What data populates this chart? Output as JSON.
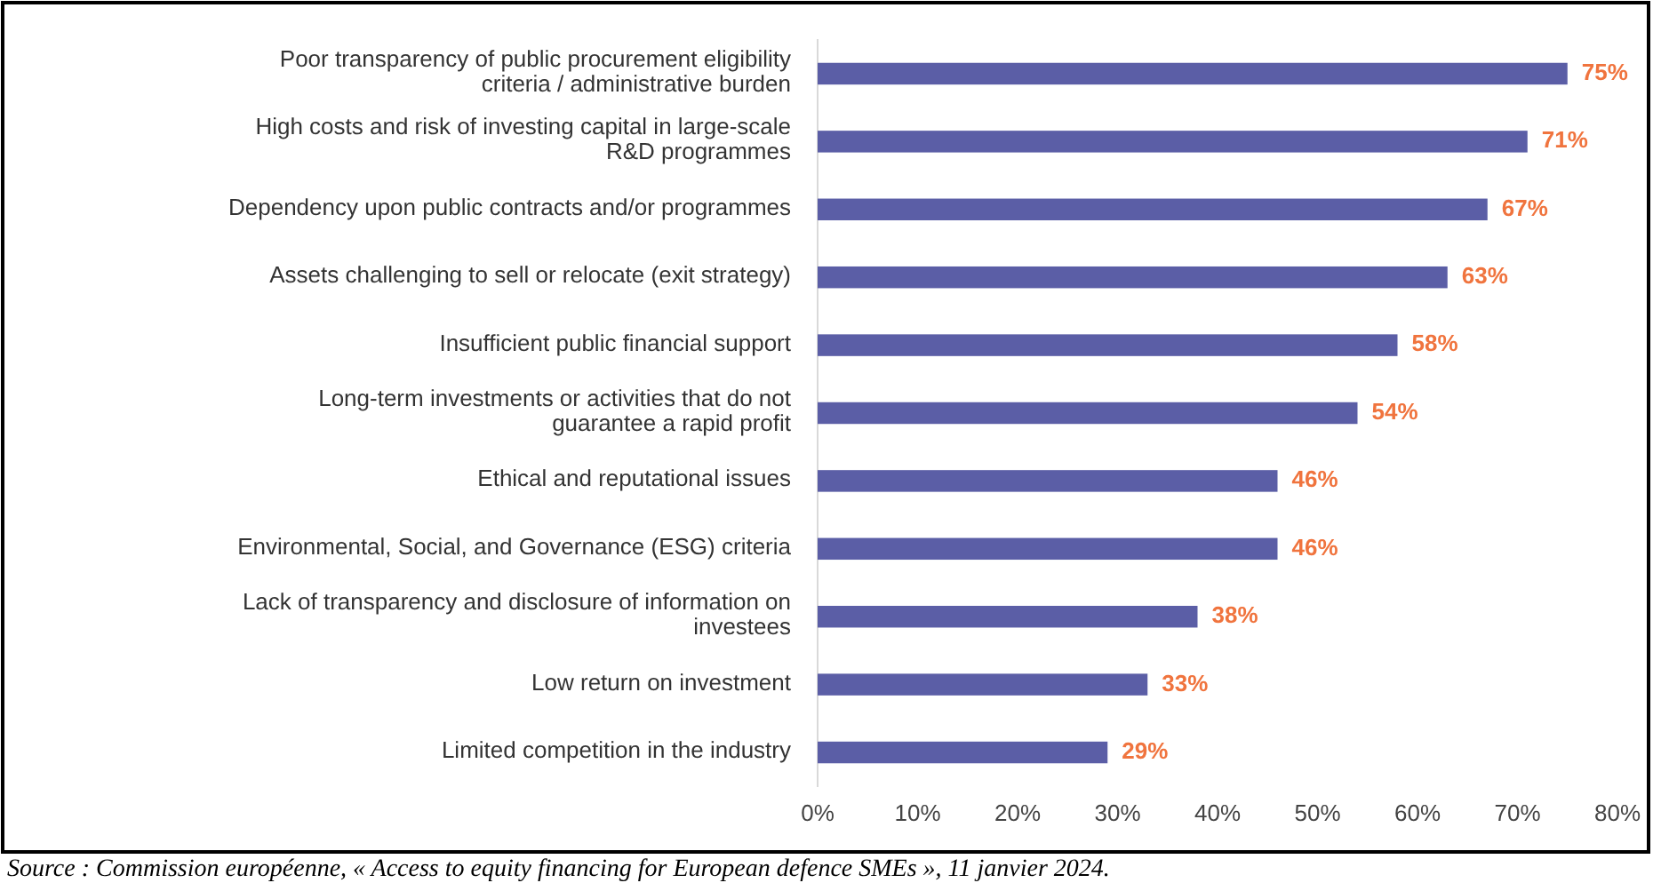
{
  "chart_data": {
    "type": "bar",
    "orientation": "horizontal",
    "categories": [
      "Poor transparency of public procurement eligibility criteria / administrative burden",
      "High costs and risk of investing capital in large-scale R&D programmes",
      "Dependency upon public contracts and/or programmes",
      "Assets challenging to sell or relocate (exit strategy)",
      "Insufficient public financial support",
      "Long-term investments or activities that do not guarantee a rapid profit",
      "Ethical and reputational issues",
      "Environmental, Social, and Governance (ESG) criteria",
      "Lack of transparency and disclosure of information on investees",
      "Low return on investment",
      "Limited competition in the industry"
    ],
    "values": [
      75,
      71,
      67,
      63,
      58,
      54,
      46,
      46,
      38,
      33,
      29
    ],
    "value_labels": [
      "75%",
      "71%",
      "67%",
      "63%",
      "58%",
      "54%",
      "46%",
      "46%",
      "38%",
      "33%",
      "29%"
    ],
    "color": "#5b5ea6",
    "xlim": [
      0,
      80
    ],
    "xticks": [
      {
        "value": 0,
        "label": "0%"
      },
      {
        "value": 10,
        "label": "10%"
      },
      {
        "value": 20,
        "label": "20%"
      },
      {
        "value": 30,
        "label": "30%"
      },
      {
        "value": 40,
        "label": "40%"
      },
      {
        "value": 50,
        "label": "50%"
      },
      {
        "value": 60,
        "label": "60%"
      },
      {
        "value": 70,
        "label": "70%"
      },
      {
        "value": 80,
        "label": "80%"
      }
    ],
    "grid": false,
    "annotations": [
      "Source : Commission européenne, « Access to equity financing for European defence SMEs », 11 janvier 2024."
    ]
  }
}
